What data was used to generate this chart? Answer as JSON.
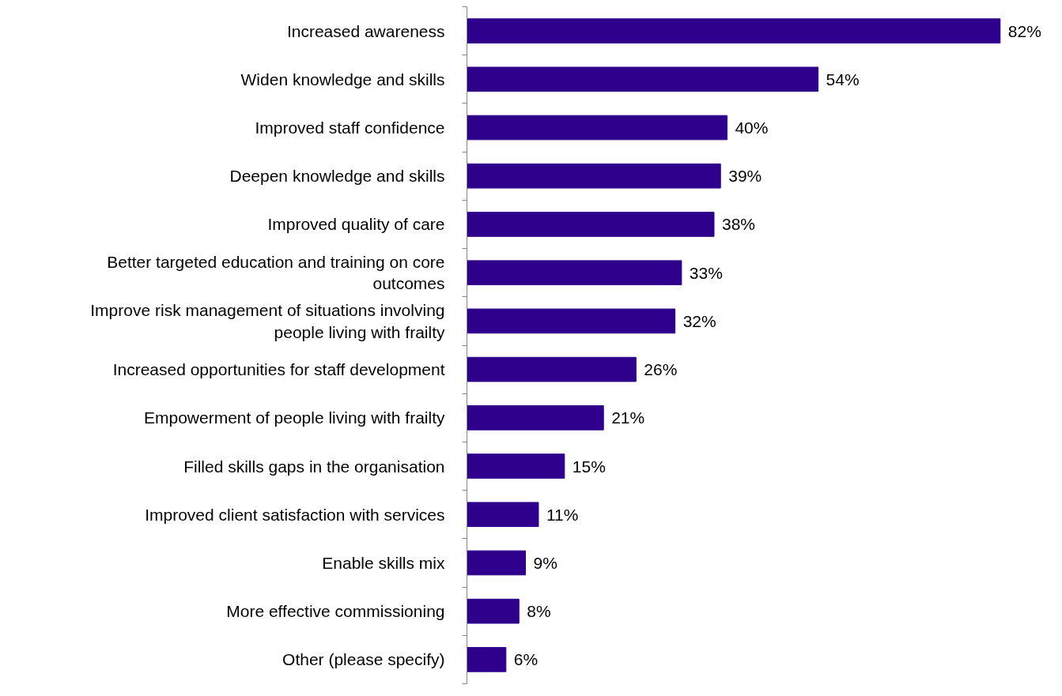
{
  "chart_data": {
    "type": "bar",
    "orientation": "horizontal",
    "categories": [
      "Increased awareness",
      "Widen knowledge and skills",
      "Improved staff confidence",
      "Deepen knowledge and skills",
      "Improved quality of care",
      "Better targeted education and training on core outcomes",
      "Improve risk management of situations involving people living with frailty",
      "Increased opportunities for staff development",
      "Empowerment of people living with frailty",
      "Filled skills gaps in the organisation",
      "Improved client satisfaction with services",
      "Enable skills mix",
      "More effective commissioning",
      "Other (please specify)"
    ],
    "values": [
      82,
      54,
      40,
      39,
      38,
      33,
      32,
      26,
      21,
      15,
      11,
      9,
      8,
      6
    ],
    "value_labels": [
      "82%",
      "54%",
      "40%",
      "39%",
      "38%",
      "33%",
      "32%",
      "26%",
      "21%",
      "15%",
      "11%",
      "9%",
      "8%",
      "6%"
    ],
    "color": "#2e008b",
    "grid": false
  }
}
